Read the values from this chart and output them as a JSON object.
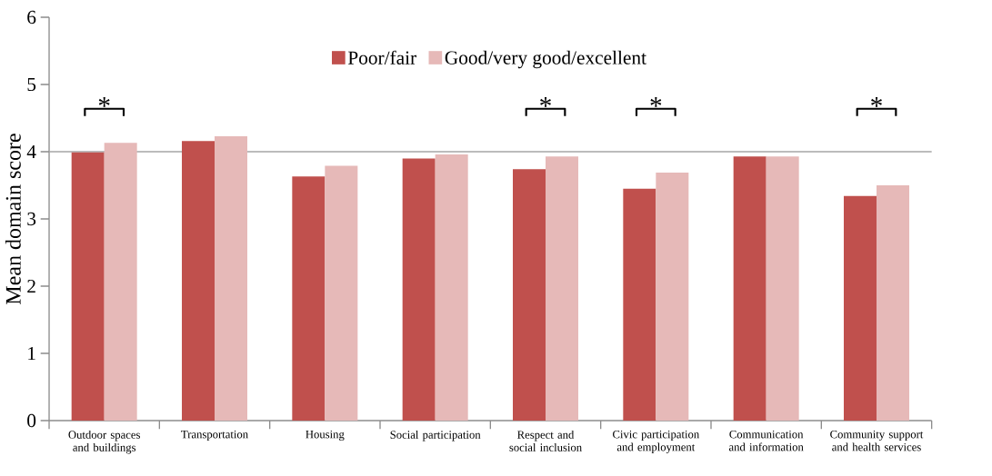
{
  "chart_data": {
    "type": "bar",
    "ylabel": "Mean domain score",
    "categories": [
      "Outdoor spaces and buildings",
      "Transportation",
      "Housing",
      "Social participation",
      "Respect and social inclusion",
      "Civic participation and employment",
      "Communication and information",
      "Community support and health services"
    ],
    "series": [
      {
        "name": "Poor/fair",
        "color": "#c0504d",
        "values": [
          3.99,
          4.16,
          3.63,
          3.9,
          3.74,
          3.45,
          3.93,
          3.34
        ]
      },
      {
        "name": "Good/very good/excellent",
        "color": "#e6b9b8",
        "values": [
          4.13,
          4.23,
          3.79,
          3.96,
          3.93,
          3.69,
          3.93,
          3.5
        ]
      }
    ],
    "ylim": [
      0,
      6
    ],
    "yticks": [
      0,
      1,
      2,
      3,
      4,
      5,
      6
    ],
    "ref_lines": [
      {
        "axis": "y",
        "value": 4,
        "color": "#a6a6a6"
      }
    ],
    "annotations": [
      "*",
      "*",
      "*",
      "*"
    ],
    "legend": "top"
  }
}
